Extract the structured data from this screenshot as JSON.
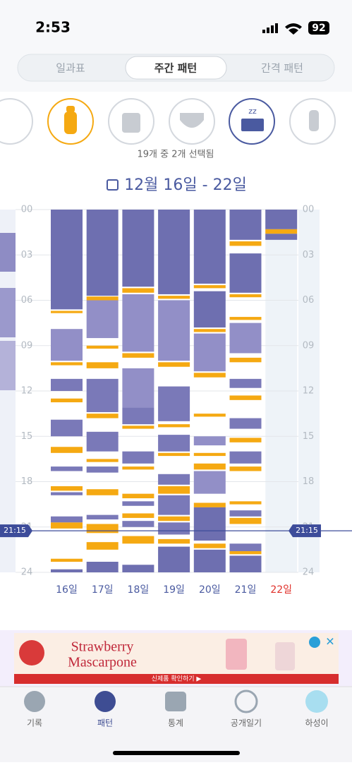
{
  "status": {
    "time": "2:53",
    "battery": "92"
  },
  "tabs": [
    "일과표",
    "주간 패턴",
    "간격 패턴"
  ],
  "selection": "19개 중 2개 선택됨",
  "range": "12월 16일 - 22일",
  "hour_ticks": [
    {
      "value": 0,
      "label": "00"
    },
    {
      "value": 3,
      "label": "03"
    },
    {
      "value": 6,
      "label": "06"
    },
    {
      "value": 9,
      "label": "09"
    },
    {
      "value": 12,
      "label": "12"
    },
    {
      "value": 15,
      "label": "15"
    },
    {
      "value": 18,
      "label": "18"
    },
    {
      "value": 21,
      "label": "21"
    },
    {
      "value": 24,
      "label": "24"
    }
  ],
  "hour_lim": [
    0,
    24
  ],
  "now": {
    "value": 21.25,
    "label": "21:15"
  },
  "days": [
    {
      "label": "16일",
      "color": "#4a5aa0",
      "segments": [
        [
          0,
          6.6,
          "#6e6fb0"
        ],
        [
          6.7,
          6.85,
          "#f5a912"
        ],
        [
          7.9,
          10.0,
          "#928fc7"
        ],
        [
          10.1,
          10.3,
          "#f5a912"
        ],
        [
          11.2,
          12.0,
          "#7a79b8"
        ],
        [
          12.5,
          12.75,
          "#f5a912"
        ],
        [
          13.9,
          15.0,
          "#7a79b8"
        ],
        [
          15.7,
          16.1,
          "#f5a912"
        ],
        [
          17.0,
          17.3,
          "#7a79b8"
        ],
        [
          18.3,
          18.6,
          "#f5a912"
        ],
        [
          18.7,
          18.9,
          "#7a79b8"
        ],
        [
          20.3,
          20.7,
          "#7a79b8"
        ],
        [
          20.7,
          21.1,
          "#f5a912"
        ],
        [
          23.1,
          23.3,
          "#f5a912"
        ],
        [
          23.8,
          24,
          "#6e6fb0"
        ]
      ]
    },
    {
      "label": "17일",
      "color": "#4a5aa0",
      "segments": [
        [
          0,
          5.7,
          "#6e6fb0"
        ],
        [
          5.75,
          6.0,
          "#f5a912"
        ],
        [
          6.0,
          8.5,
          "#928fc7"
        ],
        [
          9.0,
          9.2,
          "#f5a912"
        ],
        [
          10.1,
          10.5,
          "#f5a912"
        ],
        [
          11.2,
          13.4,
          "#7a79b8"
        ],
        [
          13.5,
          13.8,
          "#f5a912"
        ],
        [
          14.7,
          16.0,
          "#7a79b8"
        ],
        [
          16.5,
          16.7,
          "#f5a912"
        ],
        [
          17.0,
          17.4,
          "#7a79b8"
        ],
        [
          18.5,
          18.9,
          "#f5a912"
        ],
        [
          20.2,
          20.5,
          "#7a79b8"
        ],
        [
          20.8,
          21.4,
          "#f5a912"
        ],
        [
          22.0,
          22.5,
          "#f5a912"
        ],
        [
          23.3,
          24,
          "#6e6fb0"
        ]
      ]
    },
    {
      "label": "18일",
      "color": "#4a5aa0",
      "segments": [
        [
          0,
          5.1,
          "#6e6fb0"
        ],
        [
          5.2,
          5.5,
          "#f5a912"
        ],
        [
          5.6,
          9.4,
          "#928fc7"
        ],
        [
          9.5,
          9.8,
          "#f5a912"
        ],
        [
          10.5,
          13.1,
          "#928fc7"
        ],
        [
          13.1,
          14.2,
          "#7a79b8"
        ],
        [
          14.3,
          14.5,
          "#f5a912"
        ],
        [
          16.0,
          16.8,
          "#7a79b8"
        ],
        [
          17.0,
          17.2,
          "#f5a912"
        ],
        [
          18.8,
          19.1,
          "#f5a912"
        ],
        [
          19.3,
          19.6,
          "#7a79b8"
        ],
        [
          20.1,
          20.4,
          "#f5a912"
        ],
        [
          20.6,
          21.0,
          "#7a79b8"
        ],
        [
          21.6,
          22.1,
          "#f5a912"
        ],
        [
          23.5,
          24,
          "#6e6fb0"
        ]
      ]
    },
    {
      "label": "19일",
      "color": "#4a5aa0",
      "segments": [
        [
          0,
          5.6,
          "#6e6fb0"
        ],
        [
          5.7,
          5.9,
          "#f5a912"
        ],
        [
          6.0,
          10.0,
          "#928fc7"
        ],
        [
          10.1,
          10.4,
          "#f5a912"
        ],
        [
          11.7,
          14.0,
          "#7a79b8"
        ],
        [
          14.2,
          14.4,
          "#f5a912"
        ],
        [
          14.9,
          16.0,
          "#7a79b8"
        ],
        [
          16.1,
          16.3,
          "#f5a912"
        ],
        [
          17.5,
          18.2,
          "#7a79b8"
        ],
        [
          18.3,
          18.8,
          "#f5a912"
        ],
        [
          18.9,
          20.2,
          "#7a79b8"
        ],
        [
          20.3,
          20.6,
          "#f5a912"
        ],
        [
          20.7,
          21.5,
          "#7a79b8"
        ],
        [
          21.8,
          22.1,
          "#f5a912"
        ],
        [
          22.3,
          24,
          "#6e6fb0"
        ]
      ]
    },
    {
      "label": "20일",
      "color": "#4a5aa0",
      "segments": [
        [
          0,
          4.9,
          "#6e6fb0"
        ],
        [
          5.0,
          5.2,
          "#f5a912"
        ],
        [
          5.4,
          7.8,
          "#6e6fb0"
        ],
        [
          7.9,
          8.1,
          "#f5a912"
        ],
        [
          8.2,
          10.7,
          "#928fc7"
        ],
        [
          10.8,
          11.1,
          "#f5a912"
        ],
        [
          13.5,
          13.7,
          "#f5a912"
        ],
        [
          15.0,
          15.6,
          "#928fc7"
        ],
        [
          16.1,
          16.3,
          "#f5a912"
        ],
        [
          16.8,
          17.2,
          "#f5a912"
        ],
        [
          17.3,
          18.8,
          "#928fc7"
        ],
        [
          19.4,
          19.7,
          "#f5a912"
        ],
        [
          19.7,
          21.9,
          "#6e6fb0"
        ],
        [
          22.1,
          22.4,
          "#f5a912"
        ],
        [
          22.5,
          24,
          "#6e6fb0"
        ]
      ]
    },
    {
      "label": "21일",
      "color": "#4a5aa0",
      "segments": [
        [
          0,
          2.0,
          "#6e6fb0"
        ],
        [
          2.1,
          2.4,
          "#f5a912"
        ],
        [
          2.9,
          5.5,
          "#6e6fb0"
        ],
        [
          5.6,
          5.8,
          "#f5a912"
        ],
        [
          7.1,
          7.3,
          "#f5a912"
        ],
        [
          7.5,
          9.5,
          "#928fc7"
        ],
        [
          9.8,
          10.1,
          "#f5a912"
        ],
        [
          11.2,
          11.8,
          "#7a79b8"
        ],
        [
          12.3,
          12.6,
          "#f5a912"
        ],
        [
          13.8,
          14.5,
          "#7a79b8"
        ],
        [
          15.1,
          15.4,
          "#f5a912"
        ],
        [
          16.0,
          16.8,
          "#7a79b8"
        ],
        [
          17.0,
          17.3,
          "#f5a912"
        ],
        [
          19.3,
          19.5,
          "#f5a912"
        ],
        [
          19.9,
          20.3,
          "#7a79b8"
        ],
        [
          20.4,
          20.8,
          "#f5a912"
        ],
        [
          22.1,
          22.6,
          "#7a79b8"
        ],
        [
          22.6,
          22.8,
          "#f5a912"
        ],
        [
          22.9,
          24,
          "#6e6fb0"
        ]
      ]
    },
    {
      "label": "22일",
      "color": "#e0302a",
      "segments": [
        [
          0,
          1.3,
          "#6e6fb0"
        ],
        [
          1.3,
          1.6,
          "#f5a912"
        ],
        [
          1.6,
          2.0,
          "#6e6fb0"
        ]
      ]
    }
  ],
  "ad": {
    "line1": "Strawberry",
    "line2": "Mascarpone",
    "cta": "신제품 확인하기 ▶"
  },
  "nav": [
    "기록",
    "패턴",
    "통계",
    "공개일기",
    "하성이"
  ]
}
